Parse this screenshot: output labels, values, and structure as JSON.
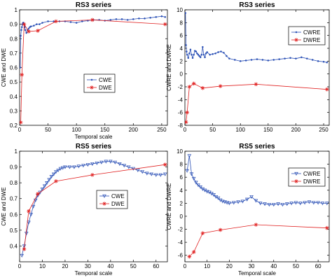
{
  "chart_data": [
    {
      "type": "line",
      "title": "RS3 series",
      "xlabel": "Temporal scale",
      "ylabel": "CWE and DWE",
      "xlim": [
        0,
        260
      ],
      "ylim": [
        0.2,
        1.0
      ],
      "xticks": [
        0,
        50,
        100,
        150,
        200,
        250
      ],
      "yticks": [
        0.2,
        0.3,
        0.4,
        0.5,
        0.6,
        0.7,
        0.8,
        0.9,
        1
      ],
      "legend_position": "center-right",
      "series": [
        {
          "name": "CWE",
          "color": "#2a4fb5",
          "marker": "dot",
          "x": [
            1,
            2,
            3,
            4,
            5,
            6,
            7,
            8,
            9,
            10,
            12,
            14,
            16,
            18,
            20,
            25,
            30,
            35,
            40,
            50,
            60,
            70,
            80,
            90,
            100,
            110,
            120,
            130,
            140,
            150,
            160,
            170,
            180,
            190,
            200,
            210,
            220,
            230,
            240,
            250,
            256
          ],
          "y": [
            0.6,
            0.82,
            0.86,
            0.88,
            0.9,
            0.91,
            0.91,
            0.9,
            0.88,
            0.86,
            0.84,
            0.86,
            0.87,
            0.88,
            0.885,
            0.89,
            0.9,
            0.9,
            0.91,
            0.92,
            0.92,
            0.92,
            0.92,
            0.915,
            0.91,
            0.92,
            0.925,
            0.93,
            0.93,
            0.925,
            0.93,
            0.935,
            0.935,
            0.93,
            0.935,
            0.94,
            0.94,
            0.945,
            0.95,
            0.955,
            0.95
          ]
        },
        {
          "name": "DWE",
          "color": "#e02020",
          "marker": "star",
          "x": [
            2,
            4,
            8,
            16,
            32,
            64,
            128,
            256
          ],
          "y": [
            0.22,
            0.55,
            0.9,
            0.85,
            0.855,
            0.92,
            0.93,
            0.9
          ]
        }
      ]
    },
    {
      "type": "line",
      "title": "RS3 series",
      "xlabel": "",
      "ylabel": "CWRE and DWRE",
      "xlim": [
        0,
        260
      ],
      "ylim": [
        -8,
        10
      ],
      "xticks": [
        0,
        50,
        100,
        150,
        200,
        250
      ],
      "yticks": [
        -8,
        -6,
        -4,
        -2,
        0,
        2,
        4,
        6,
        8,
        10
      ],
      "legend_position": "top-right",
      "series": [
        {
          "name": "CWRE",
          "color": "#2a4fb5",
          "marker": "dot",
          "x": [
            1,
            2,
            3,
            4,
            6,
            8,
            10,
            12,
            14,
            16,
            18,
            20,
            22,
            24,
            26,
            28,
            30,
            32,
            34,
            36,
            38,
            40,
            45,
            50,
            55,
            60,
            65,
            70,
            75,
            80,
            90,
            100,
            110,
            120,
            130,
            140,
            150,
            160,
            170,
            180,
            190,
            200,
            210,
            220,
            230,
            240,
            250,
            256
          ],
          "y": [
            9.5,
            4.5,
            3.5,
            3.0,
            2.5,
            3.2,
            3.8,
            3.0,
            2.5,
            3.0,
            3.6,
            3.5,
            3.2,
            3.0,
            2.8,
            2.6,
            3.0,
            4.2,
            3.0,
            2.6,
            3.2,
            3.4,
            3.0,
            3.1,
            3.2,
            3.4,
            3.5,
            3.3,
            2.8,
            2.4,
            2.2,
            2.0,
            2.1,
            2.2,
            2.3,
            2.2,
            2.1,
            2.2,
            2.3,
            2.4,
            2.5,
            2.4,
            2.6,
            2.4,
            2.2,
            2.0,
            1.9,
            1.8
          ]
        },
        {
          "name": "DWRE",
          "color": "#e02020",
          "marker": "star",
          "x": [
            2,
            4,
            8,
            16,
            32,
            64,
            128,
            256
          ],
          "y": [
            -7.5,
            -6.0,
            -2.0,
            -1.5,
            -2.2,
            -1.9,
            -1.6,
            -2.4
          ]
        }
      ]
    },
    {
      "type": "line",
      "title": "RS5 series",
      "xlabel": "Temporal scale",
      "ylabel": "CWE and DWE",
      "xlim": [
        0,
        65
      ],
      "ylim": [
        0.3,
        1.0
      ],
      "xticks": [
        0,
        10,
        20,
        30,
        40,
        50,
        60
      ],
      "yticks": [
        0.4,
        0.5,
        0.6,
        0.7,
        0.8,
        0.9,
        1
      ],
      "legend_position": "bottom-right",
      "series": [
        {
          "name": "CWE",
          "color": "#2a4fb5",
          "marker": "triangle",
          "x": [
            1,
            2,
            3,
            4,
            5,
            6,
            7,
            8,
            9,
            10,
            11,
            12,
            13,
            14,
            15,
            16,
            17,
            18,
            19,
            20,
            22,
            24,
            26,
            28,
            30,
            32,
            34,
            36,
            38,
            40,
            42,
            44,
            46,
            48,
            50,
            52,
            54,
            56,
            58,
            60,
            62,
            64
          ],
          "y": [
            0.34,
            0.4,
            0.48,
            0.55,
            0.6,
            0.65,
            0.69,
            0.72,
            0.74,
            0.76,
            0.78,
            0.8,
            0.82,
            0.84,
            0.855,
            0.87,
            0.88,
            0.89,
            0.895,
            0.9,
            0.9,
            0.9,
            0.905,
            0.91,
            0.915,
            0.92,
            0.925,
            0.93,
            0.935,
            0.935,
            0.93,
            0.92,
            0.91,
            0.9,
            0.89,
            0.88,
            0.87,
            0.86,
            0.855,
            0.85,
            0.85,
            0.855
          ]
        },
        {
          "name": "DWE",
          "color": "#e02020",
          "marker": "star",
          "x": [
            2,
            4,
            8,
            16,
            32,
            64
          ],
          "y": [
            0.38,
            0.62,
            0.73,
            0.81,
            0.85,
            0.915
          ]
        }
      ]
    },
    {
      "type": "line",
      "title": "RS5 series",
      "xlabel": "Temporal scale",
      "ylabel": "CWRE and DWRE",
      "xlim": [
        0,
        65
      ],
      "ylim": [
        -7,
        10
      ],
      "xticks": [
        0,
        10,
        20,
        30,
        40,
        50,
        60
      ],
      "yticks": [
        -6,
        -4,
        -2,
        0,
        2,
        4,
        6,
        8,
        10
      ],
      "legend_position": "top-right",
      "series": [
        {
          "name": "CWRE",
          "color": "#2a4fb5",
          "marker": "triangle",
          "x": [
            1,
            2,
            3,
            4,
            5,
            6,
            7,
            8,
            9,
            10,
            11,
            12,
            13,
            14,
            15,
            16,
            17,
            18,
            19,
            20,
            22,
            24,
            26,
            28,
            30,
            32,
            34,
            36,
            38,
            40,
            42,
            44,
            46,
            48,
            50,
            52,
            54,
            56,
            58,
            60,
            62,
            64
          ],
          "y": [
            7.0,
            9.3,
            6.5,
            5.8,
            5.2,
            4.8,
            4.5,
            4.2,
            4.0,
            3.8,
            3.7,
            3.5,
            3.3,
            3.0,
            2.8,
            2.5,
            2.3,
            2.2,
            2.1,
            2.0,
            2.1,
            2.2,
            2.3,
            2.6,
            3.0,
            2.4,
            2.0,
            1.9,
            1.8,
            1.8,
            1.9,
            1.8,
            1.9,
            2.0,
            2.1,
            2.0,
            2.1,
            2.2,
            2.1,
            2.1,
            2.0,
            2.0
          ]
        },
        {
          "name": "DWRE",
          "color": "#e02020",
          "marker": "star",
          "x": [
            2,
            4,
            8,
            16,
            32,
            64
          ],
          "y": [
            -6.2,
            -5.5,
            -2.6,
            -2.1,
            -1.3,
            -1.8
          ]
        }
      ]
    }
  ]
}
